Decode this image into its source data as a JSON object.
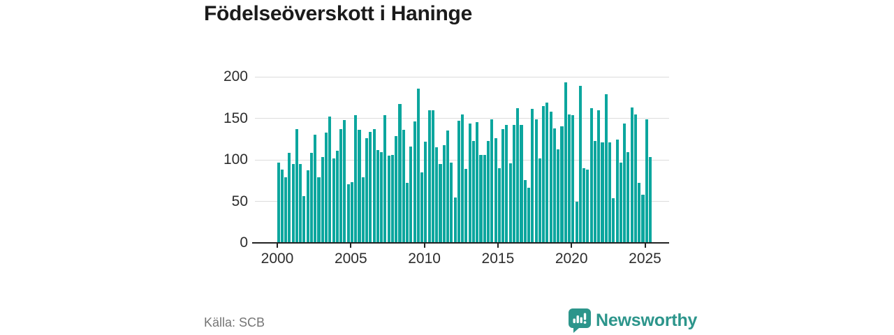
{
  "title": "Födelseöverskott i Haninge",
  "source": "Källa: SCB",
  "branding": {
    "logo_text": "Newsworthy",
    "logo_icon": "newsworthy-speech-bubble-chart-icon",
    "brand_color": "#2c958b"
  },
  "colors": {
    "bar": "#0ca69e",
    "grid": "#dcdcdc",
    "axis": "#222222",
    "tick_text": "#2d2d2d",
    "muted_text": "#757575",
    "background": "#ffffff"
  },
  "chart_data": {
    "type": "bar",
    "title": "Födelseöverskott i Haninge",
    "x_unit": "quarter",
    "start_period": "2000 Q1",
    "end_period": "2025 Q2",
    "xlabel": "",
    "ylabel": "",
    "ylim": [
      0,
      200
    ],
    "y_ticks": [
      0,
      50,
      100,
      150,
      200
    ],
    "x_tick_labels": [
      "2000",
      "2005",
      "2010",
      "2015",
      "2020",
      "2025"
    ],
    "x_tick_years": [
      2000,
      2005,
      2010,
      2015,
      2020,
      2025
    ],
    "grid": "horizontal",
    "legend": "none",
    "series": [
      {
        "name": "Födelseöverskott",
        "values": [
          97,
          88,
          79,
          108,
          95,
          137,
          95,
          56,
          87,
          108,
          130,
          79,
          103,
          133,
          152,
          102,
          111,
          137,
          148,
          71,
          73,
          154,
          136,
          79,
          126,
          134,
          137,
          112,
          109,
          154,
          105,
          106,
          129,
          167,
          136,
          72,
          116,
          146,
          186,
          85,
          122,
          160,
          160,
          115,
          95,
          118,
          135,
          97,
          55,
          147,
          155,
          89,
          144,
          123,
          145,
          106,
          106,
          123,
          149,
          126,
          90,
          137,
          142,
          96,
          142,
          162,
          142,
          76,
          66,
          161,
          149,
          102,
          165,
          169,
          158,
          138,
          113,
          140,
          193,
          155,
          154,
          50,
          189,
          90,
          88,
          162,
          123,
          160,
          121,
          179,
          121,
          54,
          124,
          97,
          144,
          109,
          163,
          155,
          72,
          58,
          149,
          103
        ]
      }
    ]
  }
}
